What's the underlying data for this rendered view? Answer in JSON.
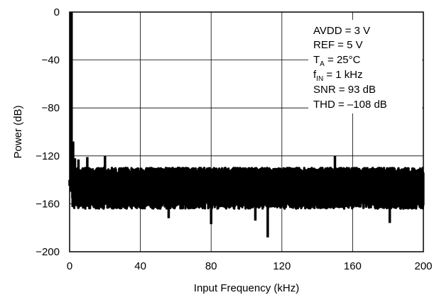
{
  "chart_data": {
    "type": "line",
    "xlabel": "Input Frequency (kHz)",
    "ylabel": "Power (dB)",
    "xlim": [
      0,
      200
    ],
    "ylim": [
      -200,
      0
    ],
    "xticks": [
      "0",
      "40",
      "80",
      "120",
      "160",
      "200"
    ],
    "yticks": [
      "0",
      "−40",
      "−80",
      "−120",
      "−160",
      "−200"
    ],
    "grid": true,
    "annotations": {
      "avdd": "AVDD = 3 V",
      "ref": "REF = 5 V",
      "ta_main": "T",
      "ta_sub": "A",
      "ta_rest": " = 25°C",
      "fin_main": "f",
      "fin_sub": "IN",
      "fin_rest": " = 1 kHz",
      "snr": "SNR = 93 dB",
      "thd": "THD = –108 dB"
    },
    "series": [
      {
        "color": "#000000",
        "fundamental": {
          "x": 1,
          "y": 0
        },
        "spurs": [
          {
            "x": 0,
            "y": -140
          },
          {
            "x": 2,
            "y": -108
          },
          {
            "x": 3,
            "y": -122
          },
          {
            "x": 5,
            "y": -123
          },
          {
            "x": 10,
            "y": -121
          },
          {
            "x": 20,
            "y": -120
          },
          {
            "x": 112,
            "y": -188
          },
          {
            "x": 105,
            "y": -174
          },
          {
            "x": 80,
            "y": -177
          },
          {
            "x": 56,
            "y": -172
          },
          {
            "x": 150,
            "y": -120
          },
          {
            "x": 181,
            "y": -176
          }
        ],
        "noise_floor_top": -130,
        "noise_floor_bottom": -160
      }
    ]
  }
}
